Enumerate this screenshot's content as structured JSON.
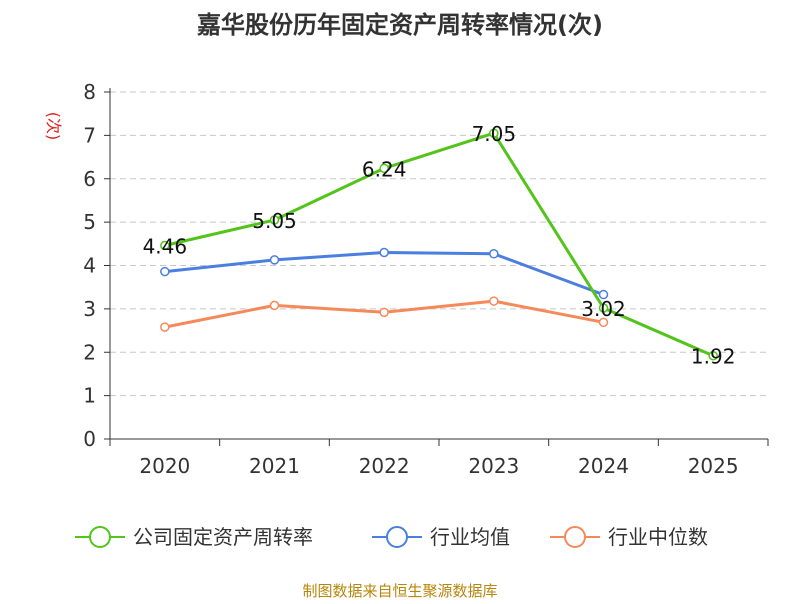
{
  "chart_data": {
    "type": "line",
    "title": "嘉华股份历年固定资产周转率情况(次)",
    "ylabel": "(次)",
    "xlabel": "",
    "categories": [
      "2020",
      "2021",
      "2022",
      "2023",
      "2024",
      "2025"
    ],
    "ylim": [
      0,
      8
    ],
    "yticks": [
      "0",
      "1",
      "2",
      "3",
      "4",
      "5",
      "6",
      "7",
      "8"
    ],
    "grid": true,
    "legend_position": "bottom",
    "series": [
      {
        "name": "公司固定资产周转率",
        "color": "#52c41a",
        "values": [
          4.46,
          5.05,
          6.24,
          7.05,
          3.02,
          1.92
        ],
        "labels": [
          "4.46",
          "5.05",
          "6.24",
          "7.05",
          "3.02",
          "1.92"
        ]
      },
      {
        "name": "行业均值",
        "color": "#4a7fe0",
        "values": [
          3.86,
          4.13,
          4.3,
          4.27,
          3.33,
          null
        ]
      },
      {
        "name": "行业中位数",
        "color": "#f5895a",
        "values": [
          2.58,
          3.08,
          2.92,
          3.18,
          2.69,
          null
        ]
      }
    ]
  },
  "source": "制图数据来自恒生聚源数据库"
}
